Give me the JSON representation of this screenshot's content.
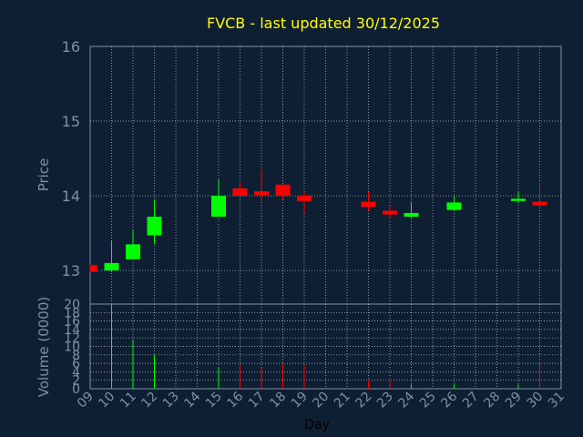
{
  "chart_data": {
    "type": "candlestick",
    "title": "FVCB - last updated 30/12/2025",
    "xlabel": "Day",
    "ylabel": "Price",
    "volume_label": "Volume (0000)",
    "price_ticks": [
      "13",
      "14",
      "15",
      "16"
    ],
    "volume_ticks": [
      "0",
      "2",
      "4",
      "6",
      "8",
      "10",
      "12",
      "14",
      "16",
      "18",
      "20"
    ],
    "day_ticks": [
      "09",
      "10",
      "11",
      "12",
      "13",
      "14",
      "15",
      "16",
      "17",
      "18",
      "19",
      "20",
      "21",
      "22",
      "23",
      "24",
      "25",
      "26",
      "27",
      "28",
      "29",
      "30",
      "31"
    ],
    "price_range": [
      12.55,
      16.0
    ],
    "volume_range": [
      0,
      20
    ],
    "day_range": [
      9,
      31
    ],
    "grid": true,
    "colors": {
      "up": "#00ff00",
      "down": "#ff0000",
      "grid": "#ffffff",
      "axis": "#7f8fa6",
      "title": "#ffff00",
      "background": "#0f1f33"
    },
    "candles": [
      {
        "day": 9,
        "open": 13.07,
        "high": 13.08,
        "low": 12.98,
        "close": 12.98,
        "volume": 0.0
      },
      {
        "day": 10,
        "open": 13.0,
        "high": 13.4,
        "low": 12.98,
        "close": 13.1,
        "volume": 20.0
      },
      {
        "day": 11,
        "open": 13.15,
        "high": 13.55,
        "low": 13.15,
        "close": 13.35,
        "volume": 11.5
      },
      {
        "day": 12,
        "open": 13.47,
        "high": 13.95,
        "low": 13.35,
        "close": 13.72,
        "volume": 8.0
      },
      {
        "day": 15,
        "open": 13.72,
        "high": 14.22,
        "low": 13.72,
        "close": 14.0,
        "volume": 5.0
      },
      {
        "day": 16,
        "open": 14.1,
        "high": 14.18,
        "low": 14.0,
        "close": 14.0,
        "volume": 5.5
      },
      {
        "day": 17,
        "open": 14.06,
        "high": 14.36,
        "low": 13.92,
        "close": 14.01,
        "volume": 5.0
      },
      {
        "day": 18,
        "open": 14.15,
        "high": 14.15,
        "low": 13.95,
        "close": 14.0,
        "volume": 6.0
      },
      {
        "day": 19,
        "open": 14.0,
        "high": 14.05,
        "low": 13.77,
        "close": 13.93,
        "volume": 5.5
      },
      {
        "day": 22,
        "open": 13.92,
        "high": 14.05,
        "low": 13.8,
        "close": 13.85,
        "volume": 2.0
      },
      {
        "day": 23,
        "open": 13.8,
        "high": 13.86,
        "low": 13.68,
        "close": 13.75,
        "volume": 2.0
      },
      {
        "day": 24,
        "open": 13.72,
        "high": 13.92,
        "low": 13.71,
        "close": 13.77,
        "volume": 1.0
      },
      {
        "day": 26,
        "open": 13.81,
        "high": 14.0,
        "low": 13.8,
        "close": 13.91,
        "volume": 1.0
      },
      {
        "day": 29,
        "open": 13.93,
        "high": 14.05,
        "low": 13.9,
        "close": 13.96,
        "volume": 1.0
      },
      {
        "day": 30,
        "open": 13.92,
        "high": 14.17,
        "low": 13.85,
        "close": 13.87,
        "volume": 6.5
      }
    ]
  }
}
